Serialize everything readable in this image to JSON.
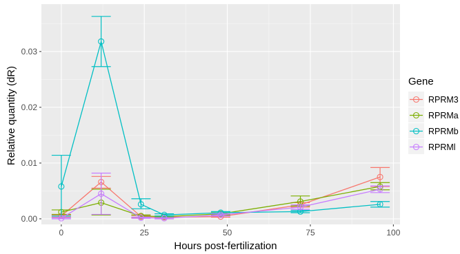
{
  "chart_data": {
    "type": "line",
    "title": "",
    "xlabel": "Hours post-fertilization",
    "ylabel": "Relative quantity (dR)",
    "xlim": [
      -6,
      102
    ],
    "ylim": [
      -0.001,
      0.0385
    ],
    "x_ticks": [
      0,
      25,
      50,
      75,
      100
    ],
    "x_tick_labels": [
      "0",
      "25",
      "50",
      "75",
      "100"
    ],
    "y_ticks": [
      0.0,
      0.01,
      0.02,
      0.03
    ],
    "y_tick_labels": [
      "0.00",
      "0.01",
      "0.02",
      "0.03"
    ],
    "grid": true,
    "legend": {
      "title": "Gene",
      "position": "right"
    },
    "series": [
      {
        "name": "RPRM3",
        "color": "#F8766D",
        "points": [
          {
            "x": 0,
            "y": 0.0005,
            "lo": 0.0003,
            "hi": 0.0007
          },
          {
            "x": 12,
            "y": 0.0066,
            "lo": 0.0055,
            "hi": 0.0076
          },
          {
            "x": 24,
            "y": 0.0004,
            "lo": 0.0002,
            "hi": 0.0006
          },
          {
            "x": 31,
            "y": 0.0003,
            "lo": 0.0002,
            "hi": 0.0004
          },
          {
            "x": 48,
            "y": 0.0004,
            "lo": 0.0003,
            "hi": 0.0005
          },
          {
            "x": 72,
            "y": 0.0025,
            "lo": 0.0021,
            "hi": 0.0029
          },
          {
            "x": 96,
            "y": 0.0075,
            "lo": 0.0058,
            "hi": 0.0092
          }
        ]
      },
      {
        "name": "RPRMa",
        "color": "#7CAE00",
        "points": [
          {
            "x": 0,
            "y": 0.0012,
            "lo": 0.0008,
            "hi": 0.0016
          },
          {
            "x": 12,
            "y": 0.0029,
            "lo": 0.0007,
            "hi": 0.0053
          },
          {
            "x": 24,
            "y": 0.0005,
            "lo": 0.0003,
            "hi": 0.0007
          },
          {
            "x": 31,
            "y": 0.0004,
            "lo": 0.0003,
            "hi": 0.0005
          },
          {
            "x": 48,
            "y": 0.0009,
            "lo": 0.0007,
            "hi": 0.0011
          },
          {
            "x": 72,
            "y": 0.0031,
            "lo": 0.0023,
            "hi": 0.0041
          },
          {
            "x": 96,
            "y": 0.0058,
            "lo": 0.0052,
            "hi": 0.0065
          }
        ]
      },
      {
        "name": "RPRMb",
        "color": "#00BFC4",
        "points": [
          {
            "x": 0,
            "y": 0.0058,
            "lo": 0.0005,
            "hi": 0.0114
          },
          {
            "x": 12,
            "y": 0.0318,
            "lo": 0.0273,
            "hi": 0.0363
          },
          {
            "x": 24,
            "y": 0.0026,
            "lo": 0.0018,
            "hi": 0.0036
          },
          {
            "x": 31,
            "y": 0.0007,
            "lo": 0.0005,
            "hi": 0.0009
          },
          {
            "x": 48,
            "y": 0.0011,
            "lo": 0.0009,
            "hi": 0.0013
          },
          {
            "x": 72,
            "y": 0.0013,
            "lo": 0.0011,
            "hi": 0.0015
          },
          {
            "x": 96,
            "y": 0.0026,
            "lo": 0.0021,
            "hi": 0.0031
          }
        ]
      },
      {
        "name": "RPRMl",
        "color": "#C77CFF",
        "points": [
          {
            "x": 0,
            "y": 0.0001,
            "lo": 0.0,
            "hi": 0.0002
          },
          {
            "x": 12,
            "y": 0.0045,
            "lo": 0.0008,
            "hi": 0.0082
          },
          {
            "x": 24,
            "y": 0.0002,
            "lo": 0.0001,
            "hi": 0.0003
          },
          {
            "x": 31,
            "y": 0.0001,
            "lo": 0.0,
            "hi": 0.0002
          },
          {
            "x": 48,
            "y": 0.0007,
            "lo": 0.0005,
            "hi": 0.0009
          },
          {
            "x": 72,
            "y": 0.0021,
            "lo": 0.0017,
            "hi": 0.0025
          },
          {
            "x": 96,
            "y": 0.0053,
            "lo": 0.0047,
            "hi": 0.0059
          }
        ]
      }
    ]
  },
  "style": {
    "panel_background": "#EBEBEB",
    "grid_major": "#FFFFFF",
    "grid_minor": "#F5F5F5"
  }
}
